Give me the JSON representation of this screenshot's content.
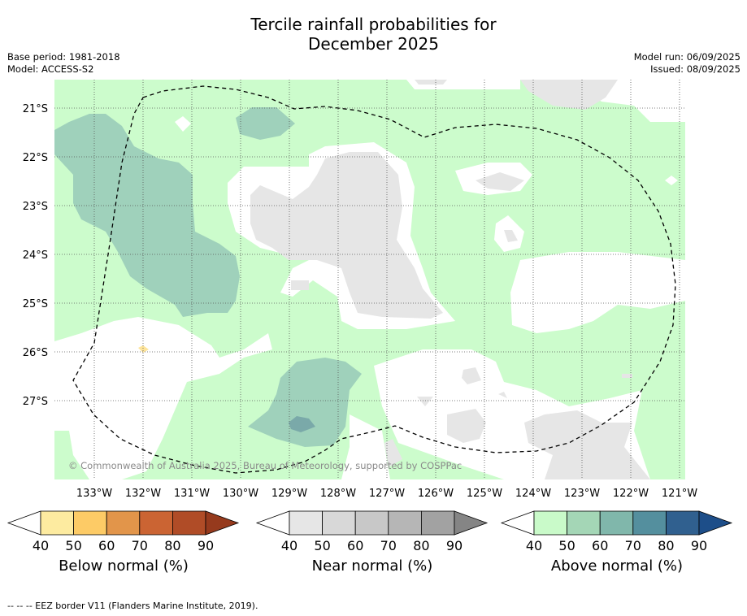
{
  "title_line1": "Tercile rainfall probabilities for",
  "title_line2": "December 2025",
  "base_period": "Base period: 1981-2018",
  "model": "Model: ACCESS-S2",
  "model_run": "Model run: 06/09/2025",
  "issued": "Issued: 08/09/2025",
  "attribution": "© Commonwealth of Australia 2025, Bureau of Meteorology, supported by COSPPac",
  "footer": "--  --  -- EEZ border V11 (Flanders Marine Institute, 2019).",
  "lat_labels": [
    "21°S",
    "22°S",
    "23°S",
    "24°S",
    "25°S",
    "26°S",
    "27°S"
  ],
  "lon_labels": [
    "133°W",
    "132°W",
    "131°W",
    "130°W",
    "129°W",
    "128°W",
    "127°W",
    "126°W",
    "125°W",
    "124°W",
    "123°W",
    "122°W",
    "121°W"
  ],
  "colorbars": [
    {
      "label": "Below normal (%)",
      "ticks": [
        "40",
        "50",
        "60",
        "70",
        "80",
        "90"
      ],
      "colors": [
        "#ffffff",
        "#fdeba0",
        "#fdcb66",
        "#e2954a",
        "#cb6433",
        "#b04c27",
        "#963a1d"
      ]
    },
    {
      "label": "Near normal (%)",
      "ticks": [
        "40",
        "50",
        "60",
        "70",
        "80",
        "90"
      ],
      "colors": [
        "#ffffff",
        "#e6e6e6",
        "#d8d8d8",
        "#c8c8c8",
        "#b6b6b6",
        "#a2a2a2",
        "#858585"
      ]
    },
    {
      "label": "Above normal (%)",
      "ticks": [
        "40",
        "50",
        "60",
        "70",
        "80",
        "90"
      ],
      "colors": [
        "#ffffff",
        "#c9fac9",
        "#a4d6b6",
        "#80b7ab",
        "#548f9e",
        "#30608f",
        "#1d4e89"
      ]
    }
  ],
  "map_colors": {
    "above40": "#ccfccc",
    "above50": "#9fd1bb",
    "above60": "#7aa9a9",
    "near40": "#e6e6e6",
    "below40": "#fde49a"
  }
}
